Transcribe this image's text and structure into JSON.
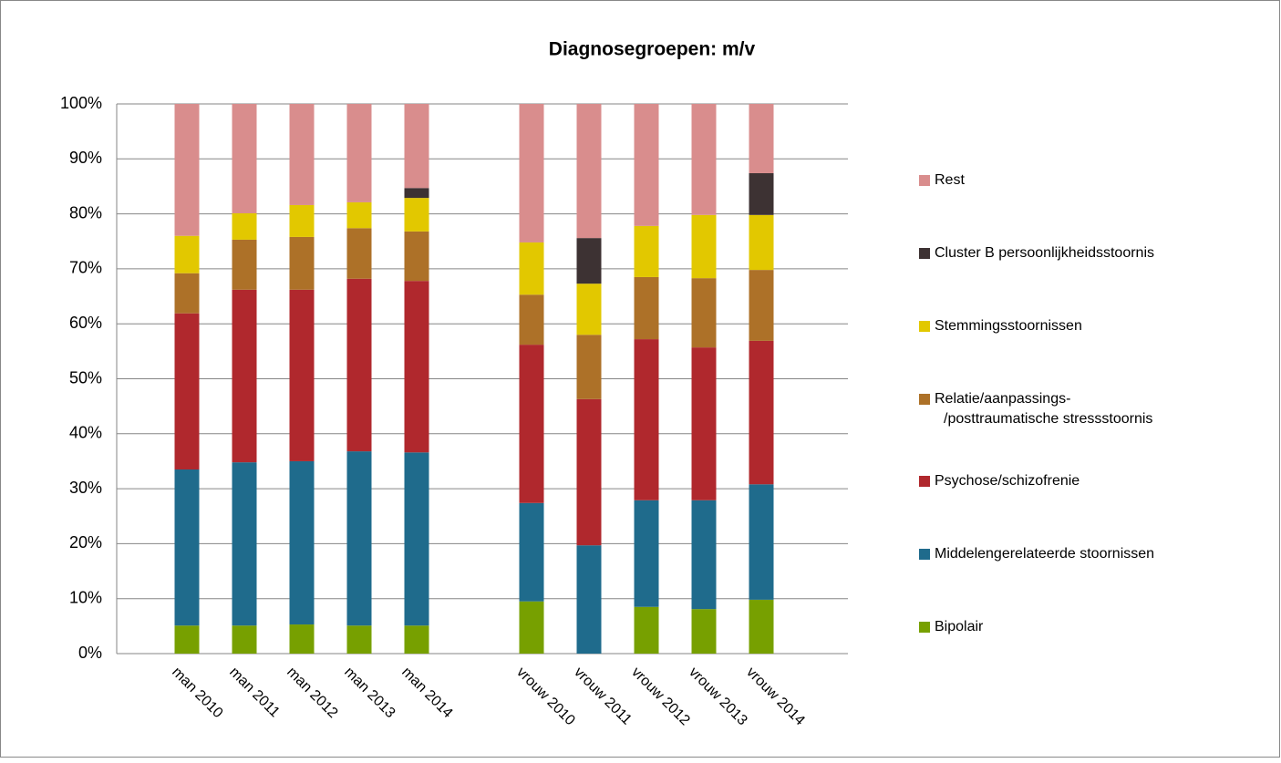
{
  "chart_data": {
    "type": "stacked-bar",
    "title": "Diagnosegroepen: m/v",
    "categories": [
      "man 2010",
      "man 2011",
      "man 2012",
      "man 2013",
      "man 2014",
      null,
      "vrouw 2010",
      "vrouw 2011",
      "vrouw 2012",
      "vrouw 2013",
      "vrouw 2014"
    ],
    "series": [
      {
        "name": "Bipolair",
        "color": "#77a000",
        "values": [
          5.1,
          5.1,
          5.3,
          5.1,
          5.1,
          null,
          9.5,
          0,
          8.5,
          8.1,
          9.8
        ]
      },
      {
        "name": "Middelengerelateerde stoornissen",
        "color": "#1f6b8c",
        "values": [
          28.4,
          29.7,
          29.7,
          31.7,
          31.5,
          null,
          17.9,
          19.7,
          19.4,
          19.8,
          21
        ]
      },
      {
        "name": "Psychose/schizofrenie",
        "color": "#b0282d",
        "values": [
          28.4,
          31.4,
          31.2,
          31.4,
          31.2,
          null,
          28.8,
          26.6,
          29.3,
          27.8,
          26.1
        ]
      },
      {
        "name": "Relatie/aanpassings-/posttraumatische stressstoornis",
        "color": "#ad7128",
        "values": [
          7.3,
          9.1,
          9.6,
          9.2,
          9,
          null,
          9.1,
          11.7,
          11.3,
          12.6,
          12.9
        ]
      },
      {
        "name": "Stemmingsstoornissen",
        "color": "#e2c800",
        "values": [
          6.8,
          4.8,
          5.8,
          4.7,
          6.1,
          null,
          9.5,
          9.3,
          9.3,
          11.5,
          10
        ]
      },
      {
        "name": "Cluster B persoonlijkheidsstoornis",
        "color": "#3d3233",
        "values": [
          0,
          0,
          0,
          0,
          1.8,
          null,
          0,
          8.3,
          0,
          0,
          7.6
        ]
      },
      {
        "name": "Rest",
        "color": "#d98d8d",
        "values": [
          24,
          19.9,
          18.4,
          17.9,
          15.3,
          null,
          25.2,
          24.4,
          22.2,
          20.2,
          12.6
        ]
      }
    ],
    "ylim": [
      0,
      100
    ],
    "yticks": [
      {
        "value": 0,
        "label": "0%"
      },
      {
        "value": 10,
        "label": "10%"
      },
      {
        "value": 20,
        "label": "20%"
      },
      {
        "value": 30,
        "label": "30%"
      },
      {
        "value": 40,
        "label": "40%"
      },
      {
        "value": 50,
        "label": "50%"
      },
      {
        "value": 60,
        "label": "60%"
      },
      {
        "value": 70,
        "label": "70%"
      },
      {
        "value": 80,
        "label": "80%"
      },
      {
        "value": 90,
        "label": "90%"
      },
      {
        "value": 100,
        "label": "100%"
      }
    ],
    "grid": true,
    "legend": "right"
  }
}
